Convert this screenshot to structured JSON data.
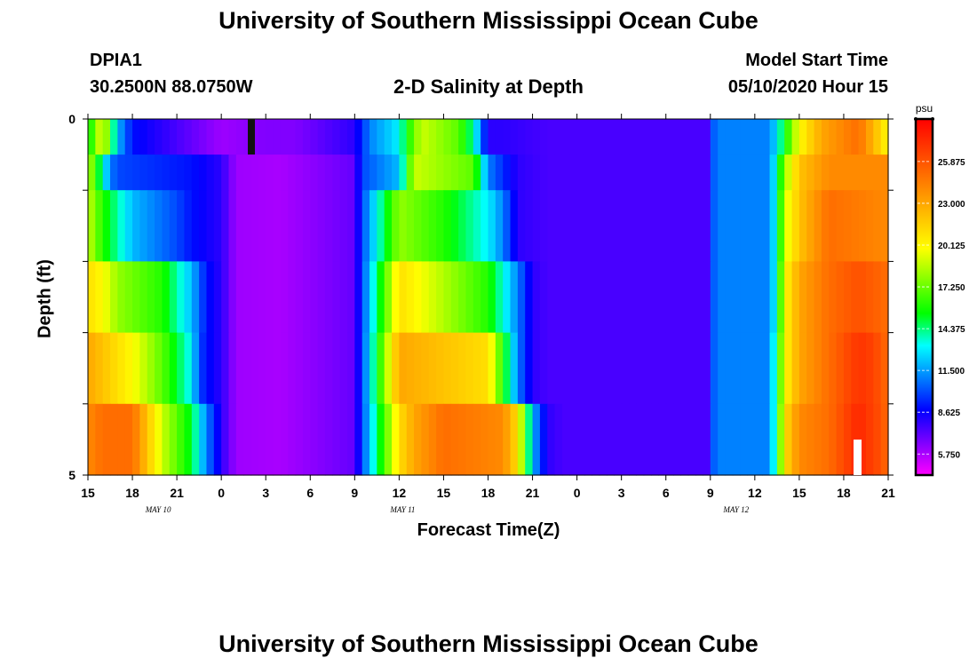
{
  "header": {
    "title": "University of Southern Mississippi Ocean Cube",
    "station": "DPIA1",
    "location": "30.2500N 88.0750W",
    "plot_title": "2-D Salinity at Depth",
    "start_label": "Model Start Time",
    "start_value": "05/10/2020 Hour 15"
  },
  "footer": {
    "title": "University of Southern Mississippi Ocean Cube"
  },
  "chart_data": {
    "type": "heatmap",
    "title": "2-D Salinity at Depth",
    "xlabel": "Forecast Time(Z)",
    "ylabel": "Depth (ft)",
    "unit": "psu",
    "x_tick_labels": [
      "15",
      "18",
      "21",
      "0",
      "3",
      "6",
      "9",
      "12",
      "15",
      "18",
      "21",
      "0",
      "3",
      "6",
      "9",
      "12",
      "15",
      "18",
      "21"
    ],
    "day_labels": [
      {
        "label": "MAY  10",
        "tick": 1.5
      },
      {
        "label": "MAY  11",
        "tick": 7
      },
      {
        "label": "MAY  12",
        "tick": 14.5
      }
    ],
    "y_tick_labels": [
      "0",
      "5"
    ],
    "ylim": [
      0,
      5
    ],
    "hours_range": [
      0,
      54
    ],
    "colorbar": {
      "ticks": [
        "25.875",
        "23.000",
        "20.125",
        "17.250",
        "14.375",
        "11.500",
        "8.625",
        "5.750"
      ],
      "range": [
        4.3,
        28.8
      ],
      "colors": [
        "#ff00ff",
        "#7f00ff",
        "#0000ff",
        "#0080ff",
        "#00ffff",
        "#00ff00",
        "#80ff00",
        "#ffff00",
        "#ffc000",
        "#ff8000",
        "#ff4000",
        "#ff0000"
      ]
    },
    "layers": [
      {
        "depth": 0.25,
        "segments": [
          [
            0,
            15
          ],
          [
            1,
            20
          ],
          [
            2,
            12
          ],
          [
            3,
            9
          ],
          [
            5,
            8
          ],
          [
            9,
            6
          ],
          [
            12,
            6.5
          ],
          [
            14,
            6.5
          ],
          [
            18,
            8
          ],
          [
            19,
            11
          ],
          [
            21,
            13
          ],
          [
            21.5,
            15.5
          ],
          [
            22.5,
            19
          ],
          [
            25,
            17
          ],
          [
            26,
            14
          ],
          [
            26.5,
            11
          ],
          [
            27,
            8
          ],
          [
            28,
            8
          ],
          [
            31,
            7.5
          ],
          [
            42,
            7.5
          ],
          [
            42.3,
            11
          ],
          [
            46,
            11
          ],
          [
            46.5,
            13
          ],
          [
            48,
            20
          ],
          [
            49.5,
            23
          ],
          [
            52,
            25
          ],
          [
            54,
            20
          ]
        ]
      },
      {
        "depth": 0.75,
        "segments": [
          [
            0,
            19
          ],
          [
            1.5,
            11
          ],
          [
            2,
            10
          ],
          [
            7,
            9
          ],
          [
            9,
            8
          ],
          [
            10,
            6
          ],
          [
            13,
            5.8
          ],
          [
            18,
            7
          ],
          [
            18.5,
            10
          ],
          [
            21,
            12
          ],
          [
            22,
            19
          ],
          [
            26,
            17
          ],
          [
            27,
            11
          ],
          [
            29,
            8
          ],
          [
            31,
            7.5
          ],
          [
            42,
            7.5
          ],
          [
            42.3,
            11
          ],
          [
            46,
            11
          ],
          [
            46.5,
            14
          ],
          [
            47,
            18
          ],
          [
            48,
            22
          ],
          [
            50,
            24
          ],
          [
            54,
            24
          ]
        ]
      },
      {
        "depth": 1.75,
        "segments": [
          [
            0,
            19
          ],
          [
            1,
            16
          ],
          [
            3,
            12
          ],
          [
            6,
            10
          ],
          [
            7,
            9
          ],
          [
            9,
            8
          ],
          [
            10,
            6
          ],
          [
            13,
            5.8
          ],
          [
            18,
            7
          ],
          [
            18.5,
            10
          ],
          [
            21,
            18
          ],
          [
            24,
            16
          ],
          [
            27,
            13
          ],
          [
            28,
            11
          ],
          [
            29,
            8
          ],
          [
            31,
            7.5
          ],
          [
            42,
            7.5
          ],
          [
            42.3,
            11
          ],
          [
            46,
            11
          ],
          [
            46.5,
            14
          ],
          [
            47,
            19
          ],
          [
            48,
            22
          ],
          [
            50,
            25
          ],
          [
            54,
            24
          ]
        ]
      },
      {
        "depth": 2.75,
        "segments": [
          [
            0,
            21
          ],
          [
            1,
            20
          ],
          [
            2,
            18
          ],
          [
            5,
            16
          ],
          [
            7,
            12
          ],
          [
            8,
            9
          ],
          [
            9,
            8
          ],
          [
            10,
            6
          ],
          [
            13,
            5.8
          ],
          [
            18,
            7
          ],
          [
            18.5,
            10
          ],
          [
            21,
            21
          ],
          [
            27,
            16
          ],
          [
            29,
            11
          ],
          [
            30,
            8
          ],
          [
            31,
            7.5
          ],
          [
            42,
            7.5
          ],
          [
            42.3,
            11
          ],
          [
            46,
            11
          ],
          [
            46.5,
            14
          ],
          [
            47,
            20
          ],
          [
            48,
            23
          ],
          [
            50,
            25
          ],
          [
            52,
            26
          ],
          [
            54,
            25
          ]
        ]
      },
      {
        "depth": 3.75,
        "segments": [
          [
            0,
            23
          ],
          [
            1,
            22
          ],
          [
            3,
            20
          ],
          [
            5,
            17
          ],
          [
            7,
            13
          ],
          [
            7.5,
            10
          ],
          [
            8,
            9
          ],
          [
            9,
            8
          ],
          [
            10,
            6
          ],
          [
            13,
            5.8
          ],
          [
            18,
            7
          ],
          [
            18.5,
            10
          ],
          [
            21,
            23
          ],
          [
            27,
            21
          ],
          [
            28,
            16
          ],
          [
            29,
            11
          ],
          [
            30,
            8
          ],
          [
            31,
            7.5
          ],
          [
            42,
            7.5
          ],
          [
            42.3,
            11
          ],
          [
            46,
            11
          ],
          [
            46.5,
            15
          ],
          [
            47,
            20
          ],
          [
            48,
            23
          ],
          [
            50,
            25
          ],
          [
            52,
            27
          ],
          [
            53,
            26.5
          ],
          [
            54,
            25
          ]
        ]
      },
      {
        "depth": 4.5,
        "segments": [
          [
            0,
            24
          ],
          [
            1,
            25
          ],
          [
            3,
            25
          ],
          [
            4,
            22
          ],
          [
            5,
            19
          ],
          [
            7,
            15
          ],
          [
            8,
            11
          ],
          [
            9,
            8
          ],
          [
            10,
            6
          ],
          [
            13,
            5.8
          ],
          [
            18,
            7
          ],
          [
            18.5,
            10
          ],
          [
            21,
            21
          ],
          [
            22,
            23
          ],
          [
            24,
            25
          ],
          [
            28,
            24
          ],
          [
            29,
            21
          ],
          [
            30,
            12
          ],
          [
            31,
            8
          ],
          [
            32,
            7.5
          ],
          [
            42,
            7.5
          ],
          [
            42.3,
            11
          ],
          [
            46,
            11
          ],
          [
            46.5,
            15
          ],
          [
            47,
            21
          ],
          [
            48,
            24
          ],
          [
            50,
            25
          ],
          [
            52,
            27.5
          ],
          [
            53.5,
            26
          ],
          [
            54,
            25
          ]
        ]
      }
    ]
  }
}
